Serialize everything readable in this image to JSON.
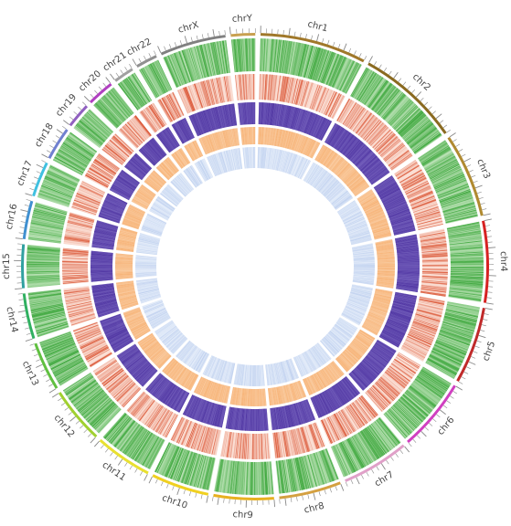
{
  "chromosomes": [
    {
      "name": "chrY",
      "size": 57,
      "color": "#c8a050"
    },
    {
      "name": "chr1",
      "size": 249,
      "color": "#a0782a"
    },
    {
      "name": "chr2",
      "size": 243,
      "color": "#8a6a20"
    },
    {
      "name": "chr3",
      "size": 198,
      "color": "#b08a30"
    },
    {
      "name": "chr4",
      "size": 191,
      "color": "#d62222"
    },
    {
      "name": "chr5",
      "size": 181,
      "color": "#c02a2a"
    },
    {
      "name": "chr6",
      "size": 171,
      "color": "#d040c0"
    },
    {
      "name": "chr7",
      "size": 159,
      "color": "#e0a0c8"
    },
    {
      "name": "chr8",
      "size": 146,
      "color": "#d4a040"
    },
    {
      "name": "chr9",
      "size": 141,
      "color": "#e8b020"
    },
    {
      "name": "chr10",
      "size": 136,
      "color": "#f0d020"
    },
    {
      "name": "chr11",
      "size": 135,
      "color": "#e8e030"
    },
    {
      "name": "chr12",
      "size": 133,
      "color": "#a0d030"
    },
    {
      "name": "chr13",
      "size": 115,
      "color": "#60c040"
    },
    {
      "name": "chr14",
      "size": 107,
      "color": "#30b060"
    },
    {
      "name": "chr15",
      "size": 102,
      "color": "#30a0a0"
    },
    {
      "name": "chr16",
      "size": 90,
      "color": "#4090d0"
    },
    {
      "name": "chr17",
      "size": 83,
      "color": "#40c0e0"
    },
    {
      "name": "chr18",
      "size": 78,
      "color": "#7080d0"
    },
    {
      "name": "chr19",
      "size": 59,
      "color": "#9060c0"
    },
    {
      "name": "chr20",
      "size": 64,
      "color": "#b040c0"
    },
    {
      "name": "chr21",
      "size": 48,
      "color": "#a0a0a0"
    },
    {
      "name": "chr22",
      "size": 51,
      "color": "#909090"
    },
    {
      "name": "chrX",
      "size": 155,
      "color": "#808080"
    }
  ],
  "tracks": [
    {
      "name": "green",
      "color": "#2ea02e",
      "base": "#d6efd0"
    },
    {
      "name": "red",
      "color": "#d6421e",
      "base": "#fbe0d6"
    },
    {
      "name": "purple",
      "color": "#4a2f9e",
      "base": "#8f7fcf"
    },
    {
      "name": "orange",
      "color": "#f4a25a",
      "base": "#fcd7b4"
    },
    {
      "name": "lightblue",
      "color": "#9fb8e6",
      "base": "#e6eefa"
    }
  ]
}
